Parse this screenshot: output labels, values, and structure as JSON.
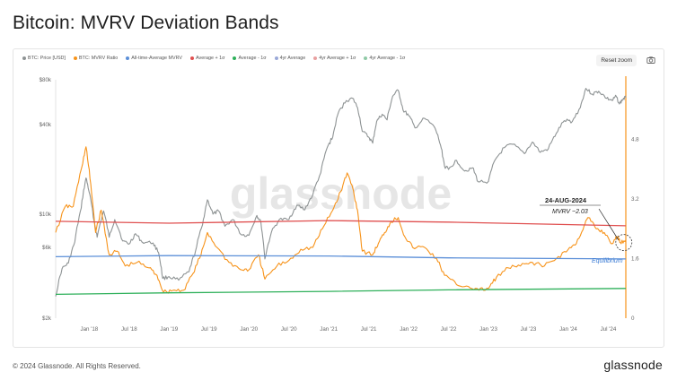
{
  "title": "Bitcoin: MVRV Deviation Bands",
  "toolbar": {
    "reset_zoom": "Reset zoom"
  },
  "footer": {
    "copyright": "© 2024 Glassnode. All Rights Reserved.",
    "logo": "glassnode"
  },
  "watermark": "glassnode",
  "annotation": {
    "date": "24-AUG-2024",
    "mvrv": "MVRV ~2.03",
    "equilibrium": "Equilibrium"
  },
  "colors": {
    "price": "#8e9394",
    "mvrv": "#f7931a",
    "average": "#5b8fd8",
    "plus": "#e05050",
    "minus": "#2eb05a",
    "axis": "#f7931a"
  },
  "chart_data": {
    "type": "line",
    "x_ticks": [
      "Jan '18",
      "Jul '18",
      "Jan '19",
      "Jul '19",
      "Jan '20",
      "Jul '20",
      "Jan '21",
      "Jul '21",
      "Jan '22",
      "Jul '22",
      "Jan '23",
      "Jul '23",
      "Jan '24",
      "Jul '24"
    ],
    "x_range": [
      2017.58,
      2024.72
    ],
    "left_axis": {
      "scale": "log",
      "ticks": [
        "$80k",
        "$40k",
        "$10k",
        "$6k",
        "$2k"
      ],
      "tick_values": [
        80000,
        40000,
        10000,
        6000,
        2000
      ],
      "range": [
        2000,
        80000
      ]
    },
    "right_axis": {
      "scale": "linear",
      "ticks": [
        "4.8",
        "3.2",
        "1.6",
        "0"
      ],
      "tick_values": [
        4.8,
        3.2,
        1.6,
        0
      ],
      "range": [
        0,
        6.4
      ]
    },
    "legend": [
      "BTC: Price [USD]",
      "BTC: MVRV Ratio",
      "All-time-Average MVRV",
      "Average + 1σ",
      "Average - 1σ",
      "4yr Average",
      "4yr Average + 1σ",
      "4yr Average - 1σ"
    ],
    "series": [
      {
        "name": "BTC: Price [USD]",
        "axis": "left",
        "color": "#8e9394",
        "points": [
          [
            2017.58,
            2800
          ],
          [
            2017.66,
            4300
          ],
          [
            2017.74,
            4700
          ],
          [
            2017.82,
            6500
          ],
          [
            2017.9,
            11000
          ],
          [
            2017.96,
            17500
          ],
          [
            2018.0,
            14000
          ],
          [
            2018.06,
            9000
          ],
          [
            2018.1,
            7000
          ],
          [
            2018.18,
            10500
          ],
          [
            2018.25,
            7000
          ],
          [
            2018.32,
            9200
          ],
          [
            2018.42,
            6600
          ],
          [
            2018.5,
            6300
          ],
          [
            2018.58,
            7400
          ],
          [
            2018.66,
            6500
          ],
          [
            2018.8,
            6400
          ],
          [
            2018.87,
            5500
          ],
          [
            2018.92,
            3700
          ],
          [
            2019.0,
            3800
          ],
          [
            2019.12,
            3600
          ],
          [
            2019.25,
            4100
          ],
          [
            2019.33,
            5600
          ],
          [
            2019.42,
            8500
          ],
          [
            2019.48,
            12500
          ],
          [
            2019.55,
            10000
          ],
          [
            2019.62,
            10500
          ],
          [
            2019.7,
            8300
          ],
          [
            2019.8,
            9200
          ],
          [
            2019.9,
            7300
          ],
          [
            2020.0,
            7200
          ],
          [
            2020.1,
            9800
          ],
          [
            2020.15,
            8800
          ],
          [
            2020.2,
            5000
          ],
          [
            2020.28,
            7500
          ],
          [
            2020.38,
            9200
          ],
          [
            2020.5,
            9200
          ],
          [
            2020.6,
            11500
          ],
          [
            2020.7,
            10700
          ],
          [
            2020.8,
            13500
          ],
          [
            2020.9,
            19000
          ],
          [
            2020.98,
            28000
          ],
          [
            2021.05,
            33000
          ],
          [
            2021.12,
            48000
          ],
          [
            2021.22,
            58000
          ],
          [
            2021.3,
            60000
          ],
          [
            2021.36,
            52000
          ],
          [
            2021.42,
            36000
          ],
          [
            2021.5,
            33000
          ],
          [
            2021.55,
            30000
          ],
          [
            2021.6,
            42000
          ],
          [
            2021.67,
            47000
          ],
          [
            2021.73,
            43000
          ],
          [
            2021.8,
            62000
          ],
          [
            2021.87,
            68000
          ],
          [
            2021.93,
            50000
          ],
          [
            2022.0,
            46000
          ],
          [
            2022.08,
            38000
          ],
          [
            2022.2,
            44000
          ],
          [
            2022.33,
            38000
          ],
          [
            2022.4,
            29000
          ],
          [
            2022.45,
            21000
          ],
          [
            2022.5,
            20000
          ],
          [
            2022.6,
            23000
          ],
          [
            2022.7,
            19500
          ],
          [
            2022.8,
            20500
          ],
          [
            2022.87,
            16500
          ],
          [
            2023.0,
            16600
          ],
          [
            2023.08,
            23000
          ],
          [
            2023.2,
            28000
          ],
          [
            2023.3,
            29500
          ],
          [
            2023.45,
            25500
          ],
          [
            2023.55,
            30500
          ],
          [
            2023.65,
            26000
          ],
          [
            2023.75,
            27500
          ],
          [
            2023.85,
            35000
          ],
          [
            2023.95,
            42500
          ],
          [
            2024.05,
            42000
          ],
          [
            2024.15,
            52000
          ],
          [
            2024.22,
            70000
          ],
          [
            2024.3,
            64000
          ],
          [
            2024.38,
            67000
          ],
          [
            2024.48,
            60000
          ],
          [
            2024.55,
            58000
          ],
          [
            2024.6,
            62000
          ],
          [
            2024.64,
            55000
          ],
          [
            2024.68,
            59000
          ],
          [
            2024.72,
            61000
          ]
        ]
      },
      {
        "name": "BTC: MVRV Ratio",
        "axis": "right",
        "color": "#f7931a",
        "points": [
          [
            2017.58,
            2.3
          ],
          [
            2017.7,
            3.0
          ],
          [
            2017.8,
            3.0
          ],
          [
            2017.9,
            4.0
          ],
          [
            2017.96,
            4.6
          ],
          [
            2018.02,
            3.6
          ],
          [
            2018.08,
            2.3
          ],
          [
            2018.15,
            2.9
          ],
          [
            2018.25,
            1.7
          ],
          [
            2018.35,
            1.8
          ],
          [
            2018.45,
            1.4
          ],
          [
            2018.6,
            1.5
          ],
          [
            2018.75,
            1.35
          ],
          [
            2018.85,
            1.15
          ],
          [
            2018.93,
            0.7
          ],
          [
            2019.05,
            0.75
          ],
          [
            2019.18,
            0.75
          ],
          [
            2019.3,
            1.2
          ],
          [
            2019.4,
            1.7
          ],
          [
            2019.48,
            2.3
          ],
          [
            2019.6,
            1.9
          ],
          [
            2019.75,
            1.5
          ],
          [
            2019.9,
            1.3
          ],
          [
            2020.0,
            1.3
          ],
          [
            2020.12,
            1.7
          ],
          [
            2020.2,
            1.05
          ],
          [
            2020.35,
            1.4
          ],
          [
            2020.5,
            1.55
          ],
          [
            2020.65,
            1.85
          ],
          [
            2020.8,
            1.9
          ],
          [
            2020.92,
            2.4
          ],
          [
            2021.05,
            2.9
          ],
          [
            2021.15,
            3.4
          ],
          [
            2021.23,
            3.9
          ],
          [
            2021.3,
            3.5
          ],
          [
            2021.36,
            2.9
          ],
          [
            2021.42,
            1.8
          ],
          [
            2021.55,
            1.7
          ],
          [
            2021.62,
            2.0
          ],
          [
            2021.7,
            2.3
          ],
          [
            2021.78,
            2.6
          ],
          [
            2021.87,
            2.7
          ],
          [
            2021.95,
            2.2
          ],
          [
            2022.05,
            1.9
          ],
          [
            2022.2,
            1.9
          ],
          [
            2022.35,
            1.6
          ],
          [
            2022.45,
            1.15
          ],
          [
            2022.6,
            0.9
          ],
          [
            2022.75,
            0.85
          ],
          [
            2022.88,
            0.75
          ],
          [
            2023.0,
            0.8
          ],
          [
            2023.1,
            1.1
          ],
          [
            2023.25,
            1.35
          ],
          [
            2023.4,
            1.4
          ],
          [
            2023.55,
            1.5
          ],
          [
            2023.7,
            1.4
          ],
          [
            2023.85,
            1.6
          ],
          [
            2024.0,
            1.85
          ],
          [
            2024.1,
            2.0
          ],
          [
            2024.2,
            2.5
          ],
          [
            2024.25,
            2.7
          ],
          [
            2024.35,
            2.4
          ],
          [
            2024.45,
            2.3
          ],
          [
            2024.55,
            2.0
          ],
          [
            2024.62,
            2.2
          ],
          [
            2024.65,
            2.03
          ],
          [
            2024.72,
            2.1
          ]
        ]
      },
      {
        "name": "All-time-Average MVRV",
        "axis": "right",
        "color": "#5b8fd8",
        "points": [
          [
            2017.58,
            1.65
          ],
          [
            2019.0,
            1.68
          ],
          [
            2021.0,
            1.67
          ],
          [
            2022.5,
            1.62
          ],
          [
            2024.72,
            1.59
          ]
        ]
      },
      {
        "name": "Average + 1σ",
        "axis": "right",
        "color": "#e05050",
        "points": [
          [
            2017.58,
            2.6
          ],
          [
            2019.0,
            2.55
          ],
          [
            2021.0,
            2.62
          ],
          [
            2022.5,
            2.58
          ],
          [
            2024.72,
            2.48
          ]
        ]
      },
      {
        "name": "Average - 1σ",
        "axis": "right",
        "color": "#2eb05a",
        "points": [
          [
            2017.58,
            0.64
          ],
          [
            2019.0,
            0.68
          ],
          [
            2021.0,
            0.72
          ],
          [
            2022.5,
            0.76
          ],
          [
            2024.72,
            0.8
          ]
        ]
      }
    ]
  }
}
